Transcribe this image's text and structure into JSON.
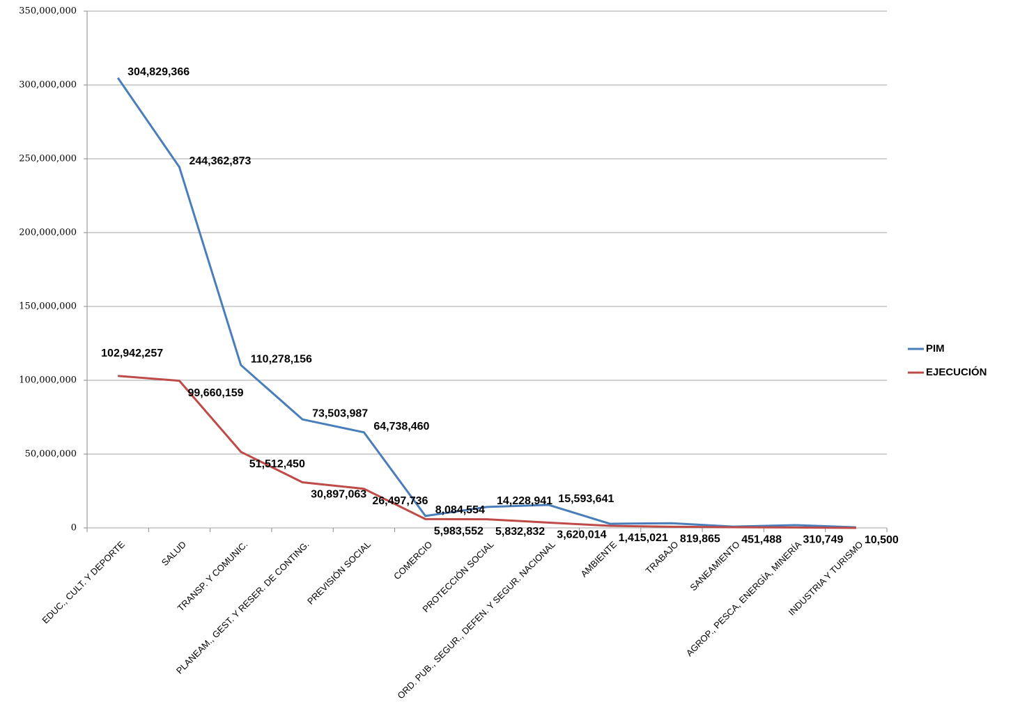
{
  "chart_data": {
    "type": "line",
    "categories": [
      "EDUC., CULT. Y DEPORTE",
      "SALUD",
      "TRANSP. Y COMUNIC.",
      "PLANEAM., GEST. Y RESER. DE CONTING.",
      "PREVISIÓN SOCIAL",
      "COMERCIO",
      "PROTECCIÓN SOCIAL",
      "ORD. PUB., SEGUR., DEFEN. Y SEGUR. NACIONAL",
      "AMBIENTE",
      "TRABAJO",
      "SANEAMIENTO",
      "AGROP., PESCA, ENERGÍA, MINERÍA",
      "INDUSTRIA Y TURISMO"
    ],
    "series": [
      {
        "name": "PIM",
        "color": "#4a7ebb",
        "values": [
          304829366,
          244362873,
          110278156,
          73503987,
          64738460,
          8084554,
          14228941,
          15593641,
          2800000,
          3200000,
          900000,
          1900000,
          400000
        ],
        "value_labels": [
          "304,829,366",
          "244,362,873",
          "110,278,156",
          "73,503,987",
          "64,738,460",
          "8,084,554",
          "14,228,941",
          "15,593,641",
          null,
          null,
          null,
          null,
          null
        ]
      },
      {
        "name": "EJECUCIÓN",
        "color": "#be4b48",
        "values": [
          102942257,
          99660159,
          51512450,
          30897063,
          26497736,
          5983552,
          5832832,
          3620014,
          1415021,
          819865,
          451488,
          310749,
          10500
        ],
        "value_labels": [
          "102,942,257",
          "99,660,159",
          "51,512,450",
          "30,897,063",
          "26,497,736",
          "5,983,552",
          "5,832,832",
          "3,620,014",
          "1,415,021",
          "819,865",
          "451,488",
          "310,749",
          "10,500"
        ]
      }
    ],
    "ylim": [
      0,
      350000000
    ],
    "yticks": [
      0,
      {
        "value": 50000000,
        "label": "50,000,000"
      },
      {
        "value": 100000000,
        "label": "100,000,000"
      },
      {
        "value": 150000000,
        "label": "150,000,000"
      },
      {
        "value": 200000000,
        "label": "200,000,000"
      },
      {
        "value": 250000000,
        "label": "250,000,000"
      },
      {
        "value": 300000000,
        "label": "300,000,000"
      },
      {
        "value": 350000000,
        "label": "350,000,000"
      }
    ],
    "grid": true,
    "legend": "right"
  }
}
